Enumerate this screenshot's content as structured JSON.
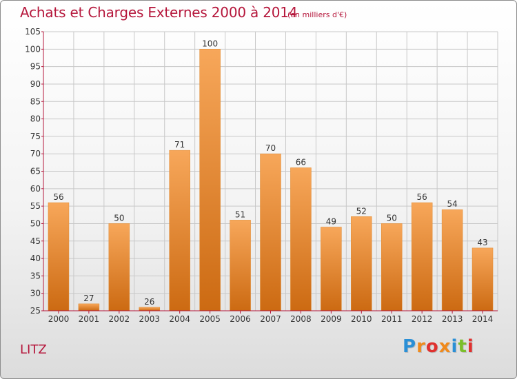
{
  "header": {
    "title": "Achats et Charges Externes 2000 à 2014",
    "subtitle": "(en milliers d'€)"
  },
  "footer": {
    "commune": "LITZ",
    "brand": "Proxiti"
  },
  "colors": {
    "title": "#b5163b",
    "bar_top": "#f7a75a",
    "bar_bottom": "#cc6a12",
    "axis": "#b5163b",
    "grid": "#c8c8c8"
  },
  "chart_data": {
    "type": "bar",
    "categories": [
      "2000",
      "2001",
      "2002",
      "2003",
      "2004",
      "2005",
      "2006",
      "2007",
      "2008",
      "2009",
      "2010",
      "2011",
      "2012",
      "2013",
      "2014"
    ],
    "values": [
      56,
      27,
      50,
      26,
      71,
      100,
      51,
      70,
      66,
      49,
      52,
      50,
      56,
      54,
      43
    ],
    "title": "Achats et Charges Externes 2000 à 2014",
    "subtitle": "(en milliers d'€)",
    "ylim": [
      25,
      105
    ],
    "yticks": [
      25,
      30,
      35,
      40,
      45,
      50,
      55,
      60,
      65,
      70,
      75,
      80,
      85,
      90,
      95,
      100,
      105
    ],
    "grid": true
  }
}
